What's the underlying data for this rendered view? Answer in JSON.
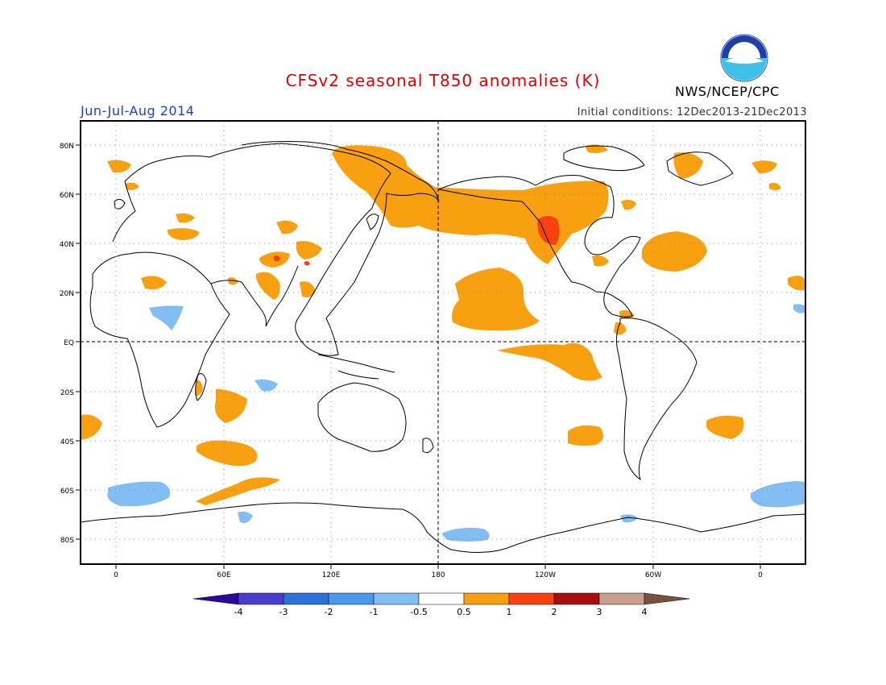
{
  "title": "CFSv2 seasonal T850 anomalies (K)",
  "agency": "NWS/NCEP/CPC",
  "logo_text": "NOAA",
  "season": "Jun-Jul-Aug 2014",
  "init_conditions": "Initial conditions: 12Dec2013-21Dec2013",
  "lat_labels": [
    "80N",
    "60N",
    "40N",
    "20N",
    "EQ",
    "20S",
    "40S",
    "60S",
    "80S"
  ],
  "lon_labels": [
    "0",
    "60E",
    "120E",
    "180",
    "120W",
    "60W",
    "0"
  ],
  "colorbar": {
    "labels": [
      "-4",
      "-3",
      "-2",
      "-1",
      "-0.5",
      "0.5",
      "1",
      "2",
      "3",
      "4"
    ],
    "colors": [
      "#2a0a9c",
      "#4a3ccf",
      "#2f6fd8",
      "#4a98ec",
      "#82bdf3",
      "#ffffff",
      "#f8a010",
      "#f84010",
      "#a80e0e",
      "#c8a090",
      "#7a5040"
    ]
  },
  "anomaly_colors": {
    "warm_0_5_1": "#f8a010",
    "warm_1_2": "#f84010",
    "cool_m1_m0_5": "#82bdf3",
    "cool_m2_m1": "#4a98ec"
  }
}
